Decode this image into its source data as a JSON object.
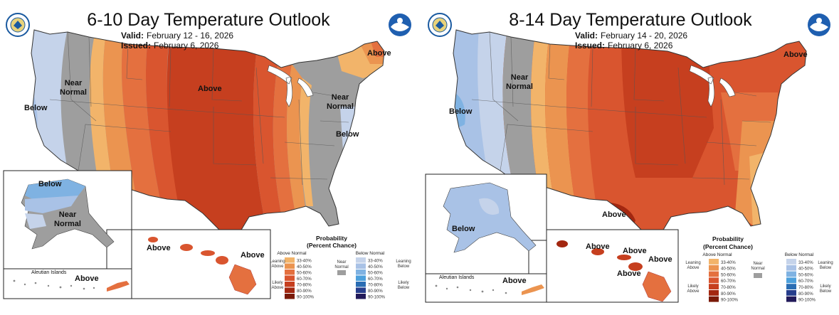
{
  "colors": {
    "above_33": "#f2b46a",
    "above_40": "#eb9450",
    "above_50": "#e4703f",
    "above_60": "#d9552f",
    "above_70": "#c63f1f",
    "above_80": "#a32710",
    "above_90": "#7a1a08",
    "below_33": "#c5d3ea",
    "below_40": "#a9c2e6",
    "below_50": "#7fb2e2",
    "below_60": "#4da0dc",
    "below_70": "#2a6db3",
    "below_80": "#263d8c",
    "below_90": "#221a5a",
    "near_normal": "#9e9e9e"
  },
  "panels": [
    {
      "title": "6-10 Day Temperature Outlook",
      "valid_label": "Valid:",
      "valid_value": "February 12 - 16, 2026",
      "issued_label": "Issued:",
      "issued_value": "February 6, 2026",
      "map_labels": {
        "near_normal": "Near\nNormal",
        "below_west": "Below",
        "above_center": "Above",
        "above_maine": "Above",
        "near_normal_ne": "Near\nNormal",
        "below_east": "Below",
        "alaska_below": "Below",
        "alaska_near_normal": "Near\nNormal",
        "aleutian_title": "Aleutian Islands",
        "aleutian_above": "Above",
        "hawaii_above_1": "Above",
        "hawaii_above_2": "Above"
      },
      "legend": {
        "title": "Probability",
        "subtitle": "(Percent Chance)",
        "above_header": "Above Normal",
        "below_header": "Below Normal",
        "leaning_above": "Leaning\nAbove",
        "likely_above": "Likely\nAbove",
        "leaning_below": "Leaning\nBelow",
        "likely_below": "Likely\nBelow",
        "near_normal": "Near\nNormal",
        "ranges": [
          "33-40%",
          "40-50%",
          "50-60%",
          "60-70%",
          "70-80%",
          "80-90%",
          "90-100%"
        ]
      }
    },
    {
      "title": "8-14 Day Temperature Outlook",
      "valid_label": "Valid:",
      "valid_value": "February 14 - 20, 2026",
      "issued_label": "Issued:",
      "issued_value": "February 6, 2026",
      "map_labels": {
        "near_normal": "Near\nNormal",
        "below_west": "Below",
        "above_maine": "Above",
        "above_texas": "Above",
        "alaska_below": "Below",
        "aleutian_title": "Aleutian Islands",
        "aleutian_above": "Above",
        "hawaii_above_1": "Above",
        "hawaii_above_2": "Above",
        "hawaii_above_3": "Above",
        "hawaii_above_4": "Above"
      },
      "legend": {
        "title": "Probability",
        "subtitle": "(Percent Chance)",
        "above_header": "Above Normal",
        "below_header": "Below Normal",
        "leaning_above": "Leaning\nAbove",
        "likely_above": "Likely\nAbove",
        "leaning_below": "Leaning\nBelow",
        "likely_below": "Likely\nBelow",
        "near_normal": "Near\nNormal",
        "ranges": [
          "33-40%",
          "40-50%",
          "50-60%",
          "60-70%",
          "70-80%",
          "80-90%",
          "90-100%"
        ]
      }
    }
  ]
}
